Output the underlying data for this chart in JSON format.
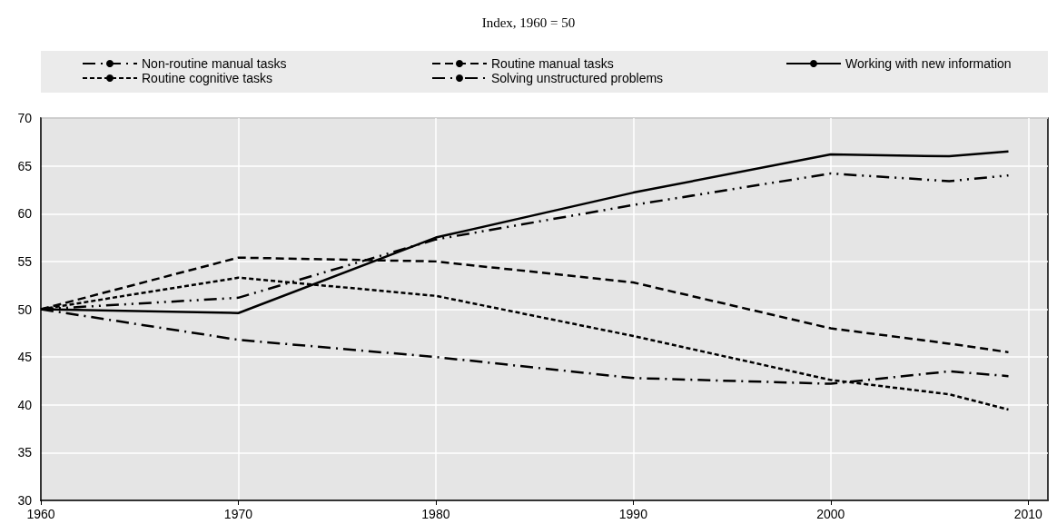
{
  "chart_data": {
    "type": "line",
    "title": "Index, 1960 = 50",
    "x": [
      1960,
      1970,
      1980,
      1990,
      2000,
      2006,
      2009
    ],
    "series": [
      {
        "name": "Non-routine manual tasks",
        "color": "#000000",
        "line_style": "dashdot",
        "values": [
          50,
          46.8,
          45,
          42.8,
          42.2,
          43.5,
          43
        ]
      },
      {
        "name": "Routine manual tasks",
        "color": "#000000",
        "line_style": "dashed",
        "values": [
          50,
          55.4,
          55,
          52.8,
          48,
          46.4,
          45.5
        ]
      },
      {
        "name": "Working with new information",
        "color": "#000000",
        "line_style": "solid",
        "values": [
          50,
          49.6,
          57.5,
          62.2,
          66.2,
          66,
          66.5
        ]
      },
      {
        "name": "Routine cognitive tasks",
        "color": "#000000",
        "line_style": "dotted",
        "values": [
          50,
          53.3,
          51.4,
          47.2,
          42.6,
          41.1,
          39.5
        ]
      },
      {
        "name": "Solving unstructured problems",
        "color": "#000000",
        "line_style": "dashdotdot",
        "values": [
          50,
          51.2,
          57.3,
          60.9,
          64.2,
          63.4,
          64
        ]
      }
    ],
    "xlim": [
      1960,
      2011
    ],
    "xticks": [
      1960,
      1970,
      1980,
      1990,
      2000,
      2010
    ],
    "ylim": [
      30,
      70
    ],
    "yticks": [
      30,
      35,
      40,
      45,
      50,
      55,
      60,
      65,
      70
    ],
    "grid": true,
    "legend": "top",
    "marker": "none"
  }
}
